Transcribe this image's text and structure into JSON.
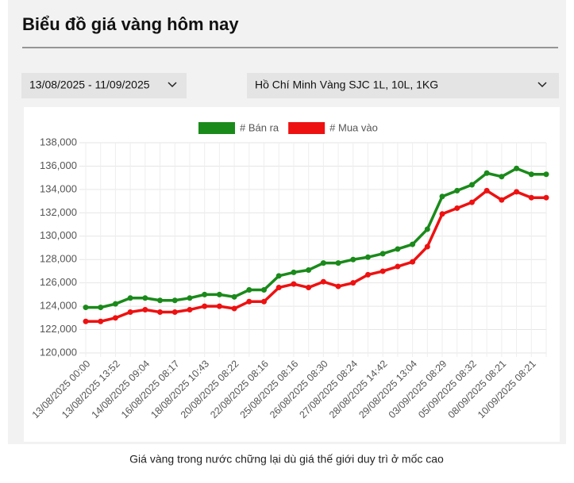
{
  "header": {
    "title": "Biểu đồ giá vàng hôm nay"
  },
  "filters": {
    "date_range": "13/08/2025 - 11/09/2025",
    "product": "Hồ Chí Minh Vàng SJC 1L, 10L, 1KG"
  },
  "chart_data": {
    "type": "line",
    "categories": [
      "13/08/2025 00:00",
      null,
      "13/08/2025 13:52",
      null,
      "14/08/2025 09:04",
      null,
      "16/08/2025 08:17",
      null,
      "18/08/2025 10:43",
      null,
      "20/08/2025 08:22",
      null,
      "22/08/2025 08:16",
      null,
      "25/08/2025 08:16",
      null,
      "26/08/2025 08:30",
      null,
      "27/08/2025 08:24",
      null,
      "28/08/2025 14:42",
      null,
      "29/08/2025 13:04",
      null,
      "03/09/2025 08:29",
      null,
      "05/09/2025 08:32",
      null,
      "08/09/2025 08:21",
      null,
      "10/09/2025 08:21",
      null
    ],
    "series": [
      {
        "name": "# Bán ra",
        "color": "#1a8a1a",
        "values": [
          123900,
          123900,
          124200,
          124700,
          124700,
          124500,
          124500,
          124700,
          125000,
          125000,
          124800,
          125400,
          125400,
          126600,
          126900,
          127100,
          127700,
          127700,
          128000,
          128200,
          128500,
          128900,
          129300,
          130600,
          133400,
          133900,
          134400,
          135400,
          135100,
          135800,
          135300,
          135300
        ]
      },
      {
        "name": "# Mua vào",
        "color": "#ee1111",
        "values": [
          122700,
          122700,
          123000,
          123500,
          123700,
          123500,
          123500,
          123700,
          124000,
          124000,
          123800,
          124400,
          124400,
          125600,
          125900,
          125600,
          126100,
          125700,
          126000,
          126700,
          127000,
          127400,
          127800,
          129100,
          131900,
          132400,
          132900,
          133900,
          133100,
          133800,
          133300,
          133300
        ]
      }
    ],
    "ylim": [
      120000,
      138000
    ],
    "yticks": [
      {
        "value": 120000,
        "label": "120,000"
      },
      {
        "value": 122000,
        "label": "122,000"
      },
      {
        "value": 124000,
        "label": "124,000"
      },
      {
        "value": 126000,
        "label": "126,000"
      },
      {
        "value": 128000,
        "label": "128,000"
      },
      {
        "value": 130000,
        "label": "130,000"
      },
      {
        "value": 132000,
        "label": "132,000"
      },
      {
        "value": 134000,
        "label": "134,000"
      },
      {
        "value": 136000,
        "label": "136,000"
      },
      {
        "value": 138000,
        "label": "138,000"
      }
    ],
    "grid": true,
    "legend": "top"
  },
  "caption": "Giá vàng trong nước chững lại dù giá thế giới duy trì ở mốc cao"
}
